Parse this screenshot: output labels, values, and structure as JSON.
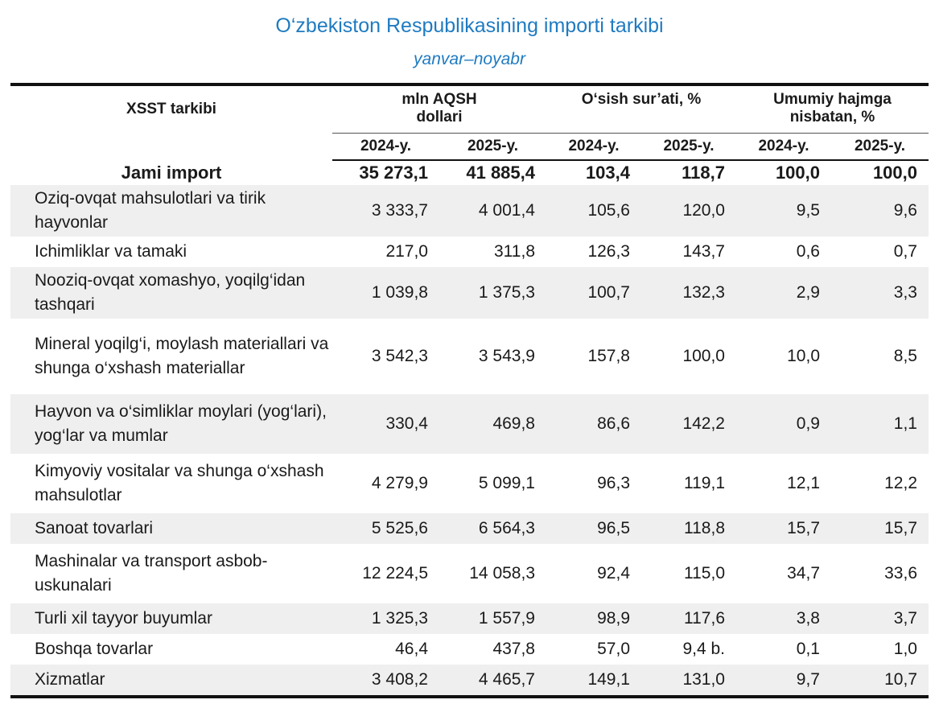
{
  "title": "O‘zbekiston Respublikasining importi tarkibi",
  "subtitle": "yanvar–noyabr",
  "header": {
    "col1": "XSST tarkibi",
    "group1": "mln AQSH dollari",
    "group2": "O‘sish sur’ati, %",
    "group3": "Umumiy hajmga nisbatan, %",
    "y2024": "2024-y.",
    "y2025": "2025-y."
  },
  "total": {
    "name": "Jami import",
    "v": [
      "35 273,1",
      "41 885,4",
      "103,4",
      "118,7",
      "100,0",
      "100,0"
    ]
  },
  "rows": [
    {
      "name": "Oziq-ovqat mahsulotlari va tirik hayvonlar",
      "v": [
        "3 333,7",
        "4 001,4",
        "105,6",
        "120,0",
        "9,5",
        "9,6"
      ]
    },
    {
      "name": "Ichimliklar va tamaki",
      "v": [
        "217,0",
        "311,8",
        "126,3",
        "143,7",
        "0,6",
        "0,7"
      ]
    },
    {
      "name": "Nooziq-ovqat xomashyo, yoqilg‘idan tashqari",
      "v": [
        "1 039,8",
        "1 375,3",
        "100,7",
        "132,3",
        "2,9",
        "3,3"
      ]
    },
    {
      "name": "Mineral yoqilg‘i, moylash materiallari va shunga o‘xshash materiallar",
      "v": [
        "3 542,3",
        "3 543,9",
        "157,8",
        "100,0",
        "10,0",
        "8,5"
      ]
    },
    {
      "name": "Hayvon va o‘simliklar moylari (yog‘lari), yog‘lar va mumlar",
      "v": [
        "330,4",
        "469,8",
        "86,6",
        "142,2",
        "0,9",
        "1,1"
      ]
    },
    {
      "name": "Kimyoviy vositalar va shunga o‘xshash mahsulotlar",
      "v": [
        "4 279,9",
        "5 099,1",
        "96,3",
        "119,1",
        "12,1",
        "12,2"
      ]
    },
    {
      "name": "Sanoat tovarlari",
      "v": [
        "5 525,6",
        "6 564,3",
        "96,5",
        "118,8",
        "15,7",
        "15,7"
      ]
    },
    {
      "name": "Mashinalar va transport asbob-uskunalari",
      "v": [
        "12 224,5",
        "14 058,3",
        "92,4",
        "115,0",
        "34,7",
        "33,6"
      ]
    },
    {
      "name": "Turli xil tayyor buyumlar",
      "v": [
        "1 325,3",
        "1 557,9",
        "98,9",
        "117,6",
        "3,8",
        "3,7"
      ]
    },
    {
      "name": "Boshqa tovarlar",
      "v": [
        "46,4",
        "437,8",
        "57,0",
        "9,4 b.",
        "0,1",
        "1,0"
      ]
    },
    {
      "name": "Xizmatlar",
      "v": [
        "3 408,2",
        "4 465,7",
        "149,1",
        "131,0",
        "9,7",
        "10,7"
      ]
    }
  ]
}
